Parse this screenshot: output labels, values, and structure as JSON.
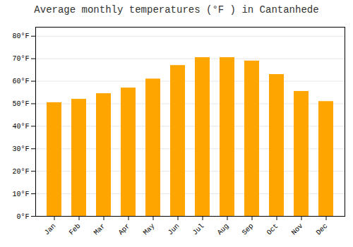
{
  "chart_data": {
    "type": "bar",
    "title": "Average monthly temperatures (°F ) in Cantanhede",
    "categories": [
      "Jan",
      "Feb",
      "Mar",
      "Apr",
      "May",
      "Jun",
      "Jul",
      "Aug",
      "Sep",
      "Oct",
      "Nov",
      "Dec"
    ],
    "values": [
      50.5,
      52.0,
      54.5,
      57.0,
      61.0,
      67.0,
      70.5,
      70.5,
      69.0,
      63.0,
      55.5,
      51.0
    ],
    "color": "#FFA500",
    "ylim": [
      0,
      84
    ],
    "yticks": [
      {
        "value": 0,
        "label": "0°F"
      },
      {
        "value": 10,
        "label": "10°F"
      },
      {
        "value": 20,
        "label": "20°F"
      },
      {
        "value": 30,
        "label": "30°F"
      },
      {
        "value": 40,
        "label": "40°F"
      },
      {
        "value": 50,
        "label": "50°F"
      },
      {
        "value": 60,
        "label": "60°F"
      },
      {
        "value": 70,
        "label": "70°F"
      },
      {
        "value": 80,
        "label": "80°F"
      }
    ],
    "grid": true
  }
}
